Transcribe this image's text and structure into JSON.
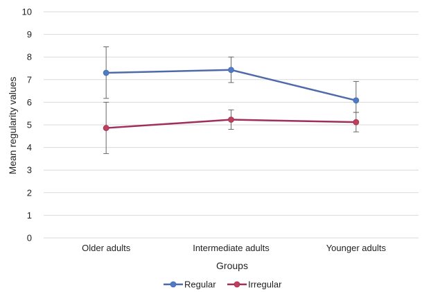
{
  "chart_data": {
    "type": "line",
    "xlabel": "Groups",
    "ylabel": "Mean regularity values",
    "categories": [
      "Older adults",
      "Intermediate adults",
      "Younger adults"
    ],
    "ylim": [
      0,
      10
    ],
    "yticks": [
      0,
      1,
      2,
      3,
      4,
      5,
      6,
      7,
      8,
      9,
      10
    ],
    "grid": true,
    "legend_position": "bottom",
    "series": [
      {
        "name": "Regular",
        "color": "#4f6aa8",
        "marker_color": "#4a7cc7",
        "values": [
          7.3,
          7.43,
          6.08
        ],
        "error_low": [
          6.17,
          6.87,
          5.55
        ],
        "error_high": [
          8.45,
          8.0,
          6.92
        ]
      },
      {
        "name": "Irregular",
        "color": "#9e2f5b",
        "marker_color": "#c0405a",
        "values": [
          4.86,
          5.23,
          5.12
        ],
        "error_low": [
          3.73,
          4.8,
          4.69
        ],
        "error_high": [
          6.0,
          5.66,
          5.55
        ]
      }
    ]
  }
}
